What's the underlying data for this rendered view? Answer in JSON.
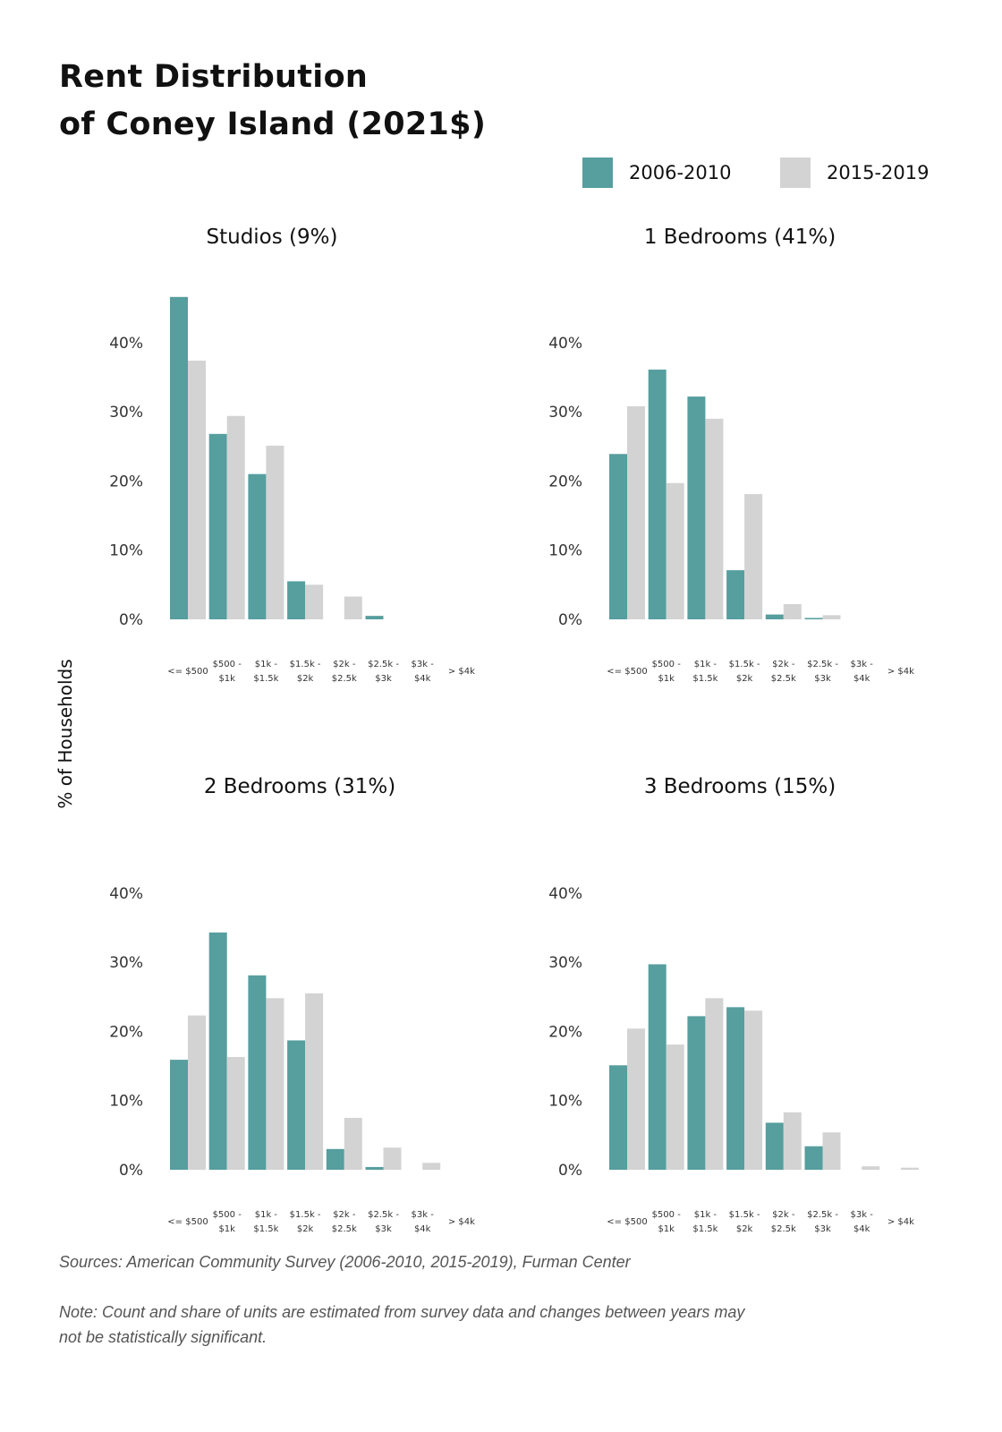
{
  "title_lines": [
    "Rent Distribution",
    "of Coney Island (2021$)"
  ],
  "legend": [
    {
      "label": "2006-2010",
      "color": "#579e9e"
    },
    {
      "label": "2015-2019",
      "color": "#d3d3d3"
    }
  ],
  "ylabel": "% of Households",
  "sources": "Sources: American Community Survey (2006-2010, 2015-2019), Furman Center",
  "note_lines": [
    "Note: Count and share of units are estimated from survey data and changes between years may",
    "not be statistically significant."
  ],
  "chart_data": {
    "type": "bar",
    "ylim": [
      0,
      47
    ],
    "yticks": [
      "0%",
      "10%",
      "20%",
      "30%",
      "40%"
    ],
    "ytick_values": [
      0,
      10,
      20,
      30,
      40
    ],
    "categories": [
      [
        "<= $500"
      ],
      [
        "$500 -",
        "$1k"
      ],
      [
        "$1k -",
        "$1.5k"
      ],
      [
        "$1.5k -",
        "$2k"
      ],
      [
        "$2k -",
        "$2.5k"
      ],
      [
        "$2.5k -",
        "$3k"
      ],
      [
        "$3k -",
        "$4k"
      ],
      [
        "> $4k"
      ]
    ],
    "series_names": [
      "2006-2010",
      "2015-2019"
    ],
    "panels": [
      {
        "title": "Studios (9%)",
        "series": [
          {
            "name": "2006-2010",
            "values": [
              46.6,
              26.8,
              21.0,
              5.5,
              0,
              0.5,
              0,
              0
            ]
          },
          {
            "name": "2015-2019",
            "values": [
              37.4,
              29.4,
              25.1,
              5.0,
              3.3,
              0,
              0,
              0
            ]
          }
        ]
      },
      {
        "title": "1 Bedrooms (41%)",
        "series": [
          {
            "name": "2006-2010",
            "values": [
              23.9,
              36.1,
              32.2,
              7.1,
              0.7,
              0.2,
              0,
              0
            ]
          },
          {
            "name": "2015-2019",
            "values": [
              30.8,
              19.7,
              29.0,
              18.1,
              2.2,
              0.6,
              0,
              0
            ]
          }
        ]
      },
      {
        "title": "2 Bedrooms (31%)",
        "series": [
          {
            "name": "2006-2010",
            "values": [
              15.9,
              34.3,
              28.1,
              18.7,
              3.0,
              0.4,
              0,
              0
            ]
          },
          {
            "name": "2015-2019",
            "values": [
              22.3,
              16.3,
              24.8,
              25.5,
              7.5,
              3.2,
              1.0,
              0
            ]
          }
        ]
      },
      {
        "title": "3 Bedrooms (15%)",
        "series": [
          {
            "name": "2006-2010",
            "values": [
              15.1,
              29.7,
              22.2,
              23.5,
              6.8,
              3.4,
              0,
              0
            ]
          },
          {
            "name": "2015-2019",
            "values": [
              20.4,
              18.1,
              24.8,
              23.0,
              8.3,
              5.4,
              0.5,
              0.3
            ]
          }
        ]
      }
    ]
  }
}
